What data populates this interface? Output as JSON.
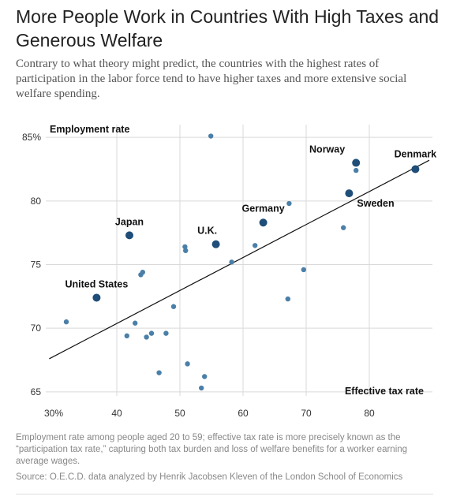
{
  "header": {
    "title": "More People Work in Countries With High Taxes and Generous Welfare",
    "subtitle": "Contrary to what theory might predict, the countries with the highest rates of participation in the labor force tend to have higher taxes and more extensive social welfare spending."
  },
  "footer": {
    "note": "Employment rate among people aged 20 to 59; effective tax rate is more precisely known as the “participation tax rate,” capturing both tax burden and loss of welfare benefits for a worker earning average wages.",
    "source": "Source: O.E.C.D. data analyzed by Henrik Jacobsen Kleven of the London School of Economics"
  },
  "colors": {
    "highlight": "#1f4e79",
    "point": "#4a7fa8",
    "grid": "#d9d9d9",
    "trend": "#111111"
  },
  "chart_data": {
    "type": "scatter",
    "xlabel": "Effective tax rate",
    "ylabel": "Employment rate",
    "xlim": [
      30,
      90
    ],
    "ylim": [
      64,
      86
    ],
    "x_ticks": [
      30,
      40,
      50,
      60,
      70,
      80
    ],
    "x_tick_labels": [
      "30%",
      "40",
      "50",
      "60",
      "70",
      "80"
    ],
    "y_ticks": [
      65,
      70,
      75,
      80,
      85
    ],
    "y_tick_labels": [
      "65",
      "70",
      "75",
      "80",
      "85%"
    ],
    "grid": true,
    "trend_line": {
      "x": [
        29.3,
        89.5
      ],
      "y": [
        67.6,
        83.2
      ]
    },
    "labeled_points": [
      {
        "name": "Denmark",
        "x": 87.3,
        "y": 82.5
      },
      {
        "name": "Norway",
        "x": 77.9,
        "y": 83.0
      },
      {
        "name": "Sweden",
        "x": 76.8,
        "y": 80.6
      },
      {
        "name": "Germany",
        "x": 63.2,
        "y": 78.3
      },
      {
        "name": "U.K.",
        "x": 55.7,
        "y": 76.6
      },
      {
        "name": "Japan",
        "x": 42.0,
        "y": 77.3
      },
      {
        "name": "United States",
        "x": 36.8,
        "y": 72.4
      }
    ],
    "other_points": [
      {
        "x": 54.9,
        "y": 85.1
      },
      {
        "x": 77.9,
        "y": 82.4
      },
      {
        "x": 67.3,
        "y": 79.8
      },
      {
        "x": 75.9,
        "y": 77.9
      },
      {
        "x": 61.9,
        "y": 76.5
      },
      {
        "x": 50.8,
        "y": 76.4
      },
      {
        "x": 50.9,
        "y": 76.1
      },
      {
        "x": 58.2,
        "y": 75.2
      },
      {
        "x": 44.1,
        "y": 74.4
      },
      {
        "x": 43.8,
        "y": 74.2
      },
      {
        "x": 69.6,
        "y": 74.6
      },
      {
        "x": 67.1,
        "y": 72.3
      },
      {
        "x": 49.0,
        "y": 71.7
      },
      {
        "x": 32.0,
        "y": 70.5
      },
      {
        "x": 42.9,
        "y": 70.4
      },
      {
        "x": 41.6,
        "y": 69.4
      },
      {
        "x": 44.7,
        "y": 69.3
      },
      {
        "x": 45.5,
        "y": 69.6
      },
      {
        "x": 47.8,
        "y": 69.6
      },
      {
        "x": 51.2,
        "y": 67.2
      },
      {
        "x": 46.7,
        "y": 66.5
      },
      {
        "x": 53.9,
        "y": 66.2
      },
      {
        "x": 53.4,
        "y": 65.3
      }
    ]
  }
}
